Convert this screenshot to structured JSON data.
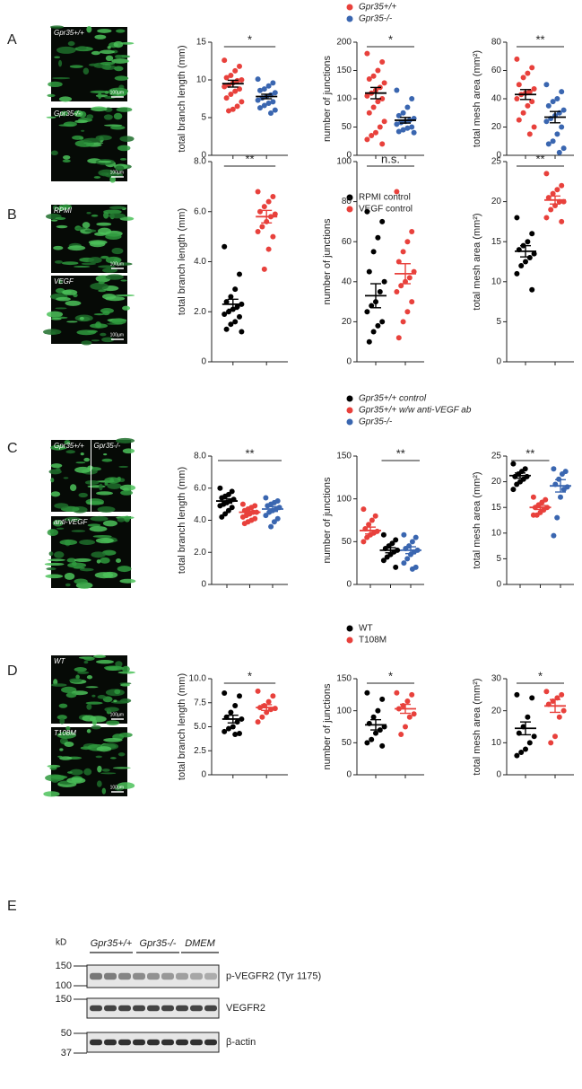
{
  "panels": [
    {
      "label": "A",
      "images": [
        {
          "labels": [
            "Gpr35+/+"
          ],
          "scale": "100µm"
        },
        {
          "labels": [
            "Gpr35-/-"
          ],
          "scale": "100µm"
        }
      ],
      "legend": [
        {
          "name": "Gpr35+/+",
          "color": "#e8413c"
        },
        {
          "name": "Gpr35-/-",
          "color": "#3a66b0"
        }
      ]
    },
    {
      "label": "B",
      "images": [
        {
          "labels": [
            "RPMI"
          ],
          "scale": "100µm"
        },
        {
          "labels": [
            "VEGF"
          ],
          "scale": "100µm"
        }
      ],
      "legend": [
        {
          "name": "RPMI control",
          "color": "#000000"
        },
        {
          "name": "VEGF control",
          "color": "#e8413c"
        }
      ]
    },
    {
      "label": "C",
      "images": [
        {
          "labels": [
            "Gpr35+/+",
            "Gpr35-/-"
          ]
        },
        {
          "labels": [
            "anti-VEGF"
          ]
        }
      ],
      "legend": [
        {
          "name": "Gpr35+/+ control",
          "color": "#000000"
        },
        {
          "name": "Gpr35+/+ w/w anti-VEGF ab",
          "color": "#e8413c"
        },
        {
          "name": "Gpr35-/-",
          "color": "#3a66b0"
        }
      ]
    },
    {
      "label": "D",
      "images": [
        {
          "labels": [
            "WT"
          ],
          "scale": "100µm"
        },
        {
          "labels": [
            "T108M"
          ],
          "scale": "100µm"
        }
      ],
      "legend": [
        {
          "name": "WT",
          "color": "#000000"
        },
        {
          "name": "T108M",
          "color": "#e8413c"
        }
      ]
    }
  ],
  "chart_data": [
    {
      "type": "strip",
      "ylabel": "total branch length (mm)",
      "ylim": [
        0,
        15
      ],
      "yticks": [
        0,
        5,
        10,
        15
      ],
      "significance": "*",
      "mean_color": "#000000",
      "series": [
        {
          "color": "#e8413c",
          "values": [
            12.6,
            11.8,
            11.2,
            10.6,
            10.3,
            10,
            9.9,
            9.6,
            9.3,
            9.1,
            8.8,
            8.5,
            8.1,
            7.6,
            7.1,
            6.5,
            6.1,
            5.9
          ],
          "mean": 9.5,
          "sem": 0.45
        },
        {
          "color": "#3a66b0",
          "values": [
            10.1,
            9.6,
            9.2,
            8.8,
            8.6,
            8.3,
            8.0,
            7.8,
            7.6,
            7.3,
            7.1,
            6.9,
            6.6,
            6.3,
            6.0,
            5.6
          ],
          "mean": 7.8,
          "sem": 0.3
        }
      ]
    },
    {
      "type": "strip",
      "ylabel": "number of junctions",
      "ylim": [
        0,
        200
      ],
      "yticks": [
        0,
        50,
        100,
        150,
        200
      ],
      "significance": "*",
      "mean_color": "#000000",
      "series": [
        {
          "color": "#e8413c",
          "values": [
            180,
            165,
            150,
            140,
            135,
            128,
            120,
            115,
            110,
            105,
            100,
            95,
            85,
            75,
            60,
            50,
            40,
            35,
            28,
            20
          ],
          "mean": 110,
          "sem": 10
        },
        {
          "color": "#3a66b0",
          "values": [
            115,
            100,
            85,
            75,
            70,
            65,
            62,
            60,
            58,
            55,
            50,
            48,
            45,
            42,
            40
          ],
          "mean": 62,
          "sem": 5
        }
      ]
    },
    {
      "type": "strip",
      "ylabel": "total mesh area (mm²)",
      "ylim": [
        0,
        80
      ],
      "yticks": [
        0,
        20,
        40,
        60,
        80
      ],
      "significance": "**",
      "mean_color": "#000000",
      "series": [
        {
          "color": "#e8413c",
          "values": [
            68,
            62,
            58,
            55,
            50,
            47,
            45,
            44,
            43,
            40,
            38,
            35,
            30,
            25,
            20,
            15
          ],
          "mean": 43,
          "sem": 3.5
        },
        {
          "color": "#3a66b0",
          "values": [
            50,
            45,
            40,
            38,
            35,
            32,
            30,
            28,
            26,
            24,
            20,
            15,
            10,
            8,
            5,
            2
          ],
          "mean": 27,
          "sem": 4
        }
      ]
    },
    {
      "type": "strip",
      "ylabel": "total branch length (mm)",
      "ylim": [
        0,
        8
      ],
      "yticks": [
        0,
        {
          "value": 2,
          "label": "2.0"
        },
        {
          "value": 4,
          "label": "4.0"
        },
        {
          "value": 6,
          "label": "6.0"
        },
        {
          "value": 8,
          "label": "8.0"
        }
      ],
      "significance": "**",
      "series": [
        {
          "color": "#000000",
          "values": [
            4.6,
            3.5,
            2.9,
            2.6,
            2.4,
            2.3,
            2.2,
            2.1,
            2.0,
            1.9,
            1.8,
            1.6,
            1.5,
            1.3,
            1.2
          ],
          "mean": 2.3,
          "sem": 0.2
        },
        {
          "color": "#e8413c",
          "values": [
            6.8,
            6.6,
            6.4,
            6.2,
            6.0,
            5.9,
            5.8,
            5.6,
            5.4,
            5.2,
            5.0,
            4.5,
            3.7
          ],
          "mean": 5.8,
          "sem": 0.25
        }
      ]
    },
    {
      "type": "strip",
      "ylabel": "number of junctions",
      "ylim": [
        0,
        100
      ],
      "yticks": [
        0,
        20,
        40,
        60,
        80,
        100
      ],
      "significance": "n.s.",
      "series": [
        {
          "color": "#000000",
          "values": [
            75,
            70,
            62,
            55,
            45,
            40,
            35,
            30,
            28,
            25,
            20,
            18,
            15,
            10
          ],
          "mean": 33,
          "sem": 6
        },
        {
          "color": "#e8413c",
          "values": [
            85,
            65,
            60,
            55,
            50,
            45,
            42,
            40,
            38,
            35,
            30,
            25,
            20,
            12
          ],
          "mean": 44,
          "sem": 5
        }
      ]
    },
    {
      "type": "strip",
      "ylabel": "total mesh area (mm²)",
      "ylim": [
        0,
        25
      ],
      "yticks": [
        0,
        5,
        10,
        15,
        20,
        25
      ],
      "significance": "**",
      "series": [
        {
          "color": "#000000",
          "values": [
            18,
            16,
            15,
            14.5,
            14,
            13.5,
            13,
            12.5,
            12,
            11,
            9
          ],
          "mean": 13.8,
          "sem": 0.7
        },
        {
          "color": "#e8413c",
          "values": [
            23.5,
            22,
            21.5,
            21,
            20.5,
            20,
            20,
            19.5,
            19,
            18,
            17.5
          ],
          "mean": 20.2,
          "sem": 0.5
        }
      ]
    },
    {
      "type": "strip",
      "ylabel": "total branch length (mm)",
      "ylim": [
        0,
        8
      ],
      "yticks": [
        0,
        {
          "value": 2,
          "label": "2.0"
        },
        {
          "value": 4,
          "label": "4.0"
        },
        {
          "value": 6,
          "label": "6.0"
        },
        {
          "value": 8,
          "label": "8.0"
        }
      ],
      "significance": "**",
      "series": [
        {
          "color": "#000000",
          "values": [
            6.0,
            5.8,
            5.6,
            5.5,
            5.4,
            5.3,
            5.2,
            5.1,
            5.0,
            4.9,
            4.8,
            4.6,
            4.4,
            4.2
          ],
          "mean": 5.2,
          "sem": 0.13
        },
        {
          "color": "#e8413c",
          "values": [
            5.0,
            4.9,
            4.8,
            4.7,
            4.6,
            4.5,
            4.5,
            4.4,
            4.3,
            4.2,
            4.1,
            4.0,
            3.9,
            3.8
          ],
          "mean": 4.5,
          "sem": 0.08
        },
        {
          "color": "#3a66b0",
          "values": [
            5.4,
            5.2,
            5.1,
            5.0,
            4.9,
            4.8,
            4.7,
            4.6,
            4.5,
            4.3,
            4.1,
            3.9,
            3.6
          ],
          "mean": 4.7,
          "sem": 0.15
        }
      ]
    },
    {
      "type": "strip",
      "ylabel": "number of junctions",
      "ylim": [
        0,
        150
      ],
      "yticks": [
        0,
        50,
        100,
        150
      ],
      "significance": "**",
      "series": [
        {
          "color": "#e8413c",
          "values": [
            88,
            80,
            75,
            70,
            65,
            62,
            60,
            58,
            55,
            50
          ],
          "mean": 63,
          "sem": 4
        },
        {
          "color": "#000000",
          "values": [
            58,
            52,
            48,
            45,
            42,
            40,
            38,
            35,
            32,
            28,
            20
          ],
          "mean": 40,
          "sem": 3
        },
        {
          "color": "#3a66b0",
          "values": [
            58,
            55,
            50,
            45,
            42,
            40,
            38,
            35,
            30,
            25,
            20,
            18
          ],
          "mean": 40,
          "sem": 4
        }
      ]
    },
    {
      "type": "strip",
      "ylabel": "total mesh area (mm²)",
      "ylim": [
        0,
        25
      ],
      "yticks": [
        0,
        5,
        10,
        15,
        20,
        25
      ],
      "significance": "**",
      "series": [
        {
          "color": "#000000",
          "values": [
            23.5,
            22.5,
            22,
            21.5,
            21,
            21,
            20.5,
            20,
            19.5,
            18.5
          ],
          "mean": 21.2,
          "sem": 0.5
        },
        {
          "color": "#e8413c",
          "values": [
            17,
            16.5,
            16,
            15.5,
            15,
            15,
            14.5,
            14,
            13.5,
            13.5
          ],
          "mean": 15,
          "sem": 0.4
        },
        {
          "color": "#3a66b0",
          "values": [
            22.5,
            22,
            21.5,
            20.5,
            19.5,
            19,
            18.5,
            17,
            13,
            9.5
          ],
          "mean": 19.2,
          "sem": 1.2
        }
      ]
    },
    {
      "type": "strip",
      "ylabel": "total branch length (mm)",
      "ylim": [
        0,
        10
      ],
      "yticks": [
        0,
        {
          "value": 2.5,
          "label": "2.5"
        },
        {
          "value": 5,
          "label": "5.0"
        },
        {
          "value": 7.5,
          "label": "7.5"
        },
        {
          "value": 10,
          "label": "10.0"
        }
      ],
      "significance": "*",
      "series": [
        {
          "color": "#000000",
          "values": [
            8.5,
            8.2,
            7.2,
            6.5,
            6.0,
            5.8,
            5.5,
            5.0,
            4.8,
            4.5,
            4.3,
            4.2
          ],
          "mean": 5.8,
          "sem": 0.4
        },
        {
          "color": "#e8413c",
          "values": [
            8.7,
            8.2,
            7.6,
            7.2,
            7.0,
            6.9,
            6.8,
            6.5,
            6.0,
            5.5
          ],
          "mean": 7.0,
          "sem": 0.3
        }
      ]
    },
    {
      "type": "strip",
      "ylabel": "number of junctions",
      "ylim": [
        0,
        150
      ],
      "yticks": [
        0,
        50,
        100,
        150
      ],
      "significance": "*",
      "series": [
        {
          "color": "#000000",
          "values": [
            128,
            118,
            100,
            90,
            80,
            75,
            70,
            65,
            55,
            50,
            45
          ],
          "mean": 78,
          "sem": 8
        },
        {
          "color": "#e8413c",
          "values": [
            128,
            125,
            115,
            108,
            103,
            95,
            90,
            75,
            63
          ],
          "mean": 103,
          "sem": 7
        }
      ]
    },
    {
      "type": "strip",
      "ylabel": "total mesh area (mm²)",
      "ylim": [
        0,
        30
      ],
      "yticks": [
        0,
        10,
        20,
        30
      ],
      "significance": "*",
      "series": [
        {
          "color": "#000000",
          "values": [
            25,
            24,
            18,
            15,
            13,
            12,
            10,
            8,
            7,
            6
          ],
          "mean": 14.5,
          "sem": 2
        },
        {
          "color": "#e8413c",
          "values": [
            26,
            25,
            24,
            23,
            22,
            20,
            18,
            12,
            10
          ],
          "mean": 21.5,
          "sem": 2
        }
      ]
    }
  ],
  "blot": {
    "label": "E",
    "unit": "kD",
    "groups": [
      "Gpr35+/+",
      "Gpr35-/-",
      "DMEM"
    ],
    "rows": [
      {
        "name": "p-VEGFR2 (Tyr 1175)",
        "markers": [
          "150",
          "100"
        ]
      },
      {
        "name": "VEGFR2",
        "markers": [
          "150"
        ]
      },
      {
        "name": "β-actin",
        "markers": [
          "50",
          "37"
        ]
      }
    ]
  }
}
